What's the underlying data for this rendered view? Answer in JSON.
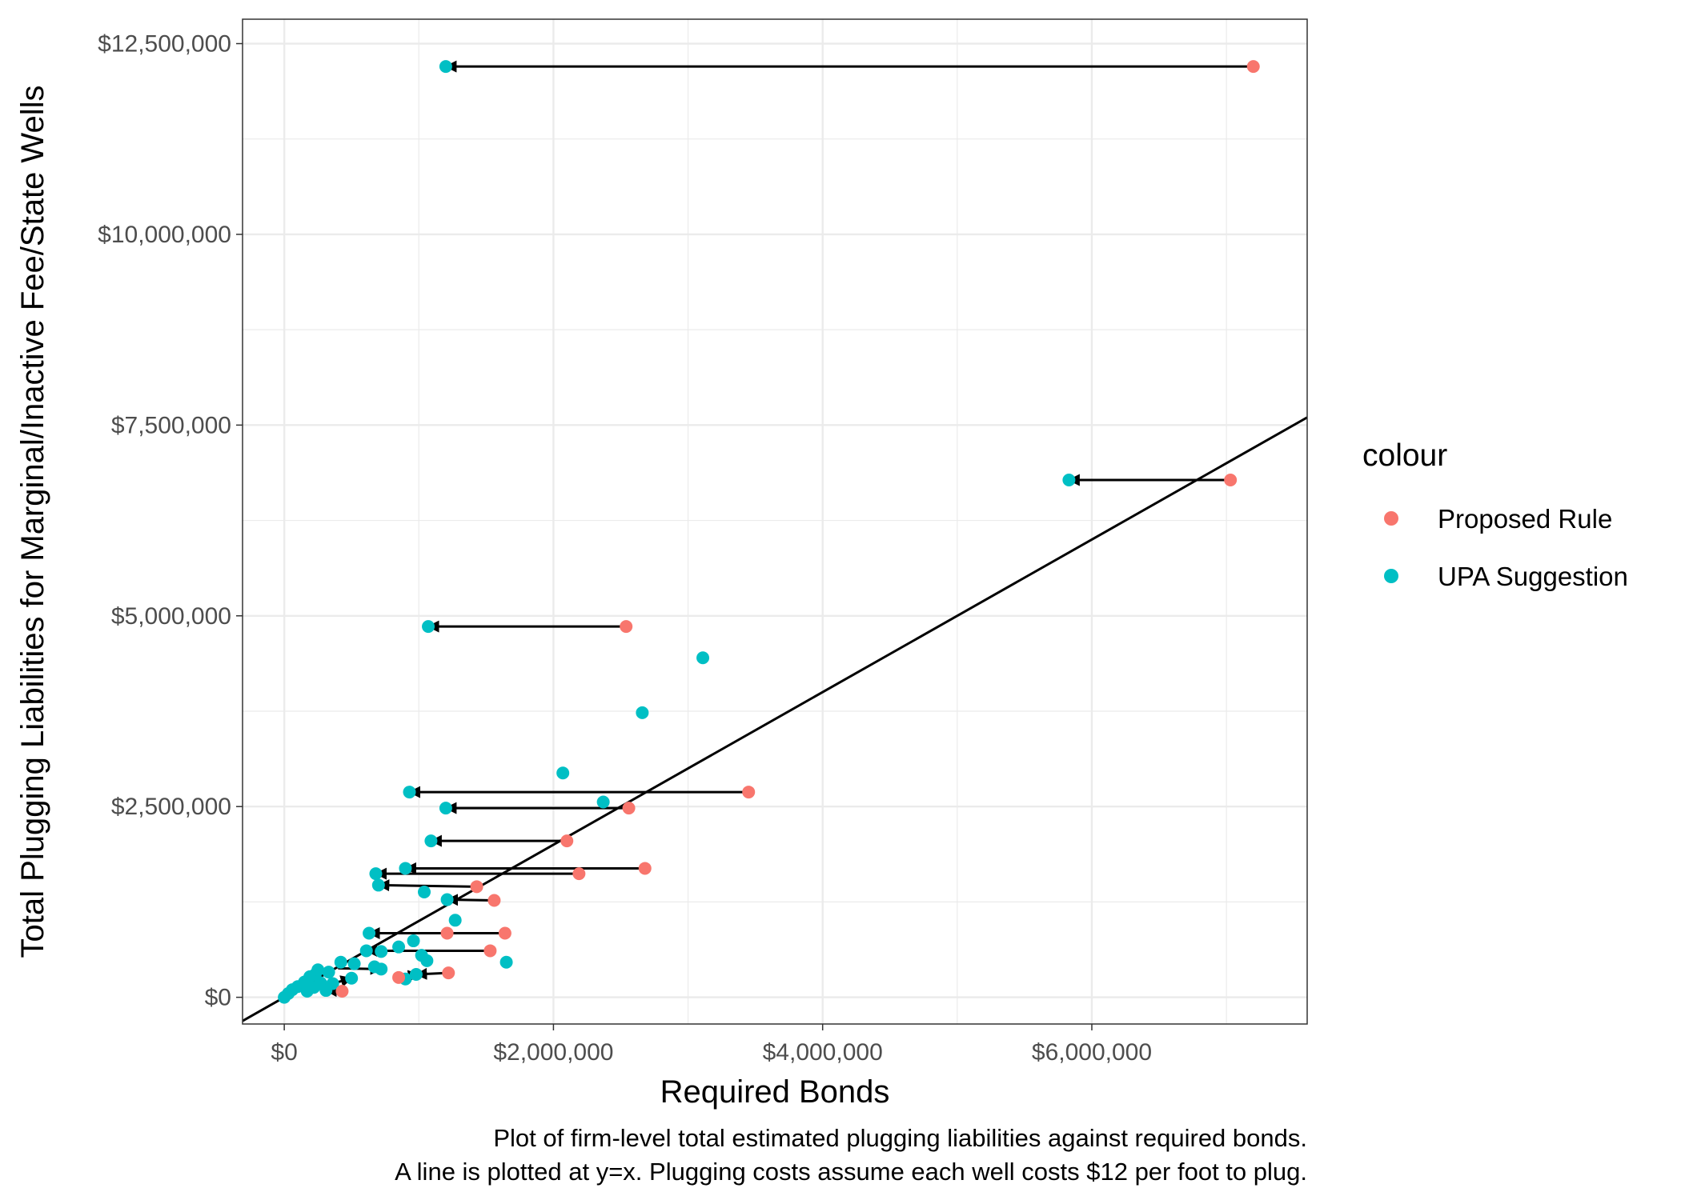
{
  "chart_data": {
    "type": "scatter",
    "xlabel": "Required Bonds",
    "ylabel": "Total Plugging Liabilities for Marginal/Inactive Fee/State Wells",
    "xlim": [
      -310000,
      7600000
    ],
    "ylim": [
      -350000,
      12820000
    ],
    "x_ticks": [
      {
        "value": 0,
        "label": "$0"
      },
      {
        "value": 2000000,
        "label": "$2,000,000"
      },
      {
        "value": 4000000,
        "label": "$4,000,000"
      },
      {
        "value": 6000000,
        "label": "$6,000,000"
      }
    ],
    "y_ticks": [
      {
        "value": 0,
        "label": "$0"
      },
      {
        "value": 2500000,
        "label": "$2,500,000"
      },
      {
        "value": 5000000,
        "label": "$5,000,000"
      },
      {
        "value": 7500000,
        "label": "$7,500,000"
      },
      {
        "value": 10000000,
        "label": "$10,000,000"
      },
      {
        "value": 12500000,
        "label": "$12,500,000"
      }
    ],
    "grid": true,
    "reference_line": "y=x",
    "legend": {
      "title": "colour",
      "placement": "right",
      "entries": [
        {
          "name": "Proposed Rule",
          "color": "#F8766D"
        },
        {
          "name": "UPA Suggestion",
          "color": "#00BFC4"
        }
      ]
    },
    "series": [
      {
        "name": "Proposed Rule",
        "color": "#F8766D",
        "points": [
          [
            7200000,
            12200000
          ],
          [
            7030000,
            6780000
          ],
          [
            2540000,
            4860000
          ],
          [
            3450000,
            2690000
          ],
          [
            2560000,
            2480000
          ],
          [
            2100000,
            2050000
          ],
          [
            2680000,
            1690000
          ],
          [
            2190000,
            1620000
          ],
          [
            1430000,
            1450000
          ],
          [
            1560000,
            1270000
          ],
          [
            1640000,
            840000
          ],
          [
            1210000,
            840000
          ],
          [
            1530000,
            610000
          ],
          [
            1220000,
            320000
          ],
          [
            850000,
            260000
          ],
          [
            430000,
            80000
          ]
        ]
      },
      {
        "name": "UPA Suggestion",
        "color": "#00BFC4",
        "points": [
          [
            1200000,
            12200000
          ],
          [
            5830000,
            6780000
          ],
          [
            1070000,
            4860000
          ],
          [
            3110000,
            4450000
          ],
          [
            2660000,
            3730000
          ],
          [
            2070000,
            2940000
          ],
          [
            930000,
            2690000
          ],
          [
            2370000,
            2560000
          ],
          [
            1200000,
            2480000
          ],
          [
            1090000,
            2050000
          ],
          [
            900000,
            1690000
          ],
          [
            680000,
            1620000
          ],
          [
            700000,
            1470000
          ],
          [
            1040000,
            1380000
          ],
          [
            1210000,
            1280000
          ],
          [
            1270000,
            1010000
          ],
          [
            630000,
            840000
          ],
          [
            960000,
            740000
          ],
          [
            850000,
            660000
          ],
          [
            610000,
            610000
          ],
          [
            720000,
            600000
          ],
          [
            1020000,
            550000
          ],
          [
            1060000,
            480000
          ],
          [
            1650000,
            460000
          ],
          [
            420000,
            460000
          ],
          [
            520000,
            440000
          ],
          [
            670000,
            400000
          ],
          [
            720000,
            370000
          ],
          [
            250000,
            360000
          ],
          [
            330000,
            330000
          ],
          [
            230000,
            300000
          ],
          [
            980000,
            300000
          ],
          [
            190000,
            270000
          ],
          [
            500000,
            250000
          ],
          [
            900000,
            240000
          ],
          [
            150000,
            200000
          ],
          [
            270000,
            190000
          ],
          [
            360000,
            180000
          ],
          [
            100000,
            140000
          ],
          [
            220000,
            130000
          ],
          [
            60000,
            100000
          ],
          [
            310000,
            90000
          ],
          [
            170000,
            80000
          ],
          [
            30000,
            50000
          ],
          [
            0,
            0
          ]
        ]
      }
    ],
    "arrows": [
      {
        "from": [
          7200000,
          12200000
        ],
        "to": [
          1200000,
          12200000
        ]
      },
      {
        "from": [
          7030000,
          6780000
        ],
        "to": [
          5830000,
          6780000
        ]
      },
      {
        "from": [
          2540000,
          4860000
        ],
        "to": [
          1070000,
          4860000
        ]
      },
      {
        "from": [
          3450000,
          2690000
        ],
        "to": [
          930000,
          2690000
        ]
      },
      {
        "from": [
          2560000,
          2480000
        ],
        "to": [
          1200000,
          2480000
        ]
      },
      {
        "from": [
          2100000,
          2050000
        ],
        "to": [
          1090000,
          2050000
        ]
      },
      {
        "from": [
          2680000,
          1690000
        ],
        "to": [
          900000,
          1690000
        ]
      },
      {
        "from": [
          2190000,
          1620000
        ],
        "to": [
          680000,
          1620000
        ]
      },
      {
        "from": [
          1430000,
          1450000
        ],
        "to": [
          700000,
          1470000
        ]
      },
      {
        "from": [
          1560000,
          1270000
        ],
        "to": [
          1210000,
          1280000
        ]
      },
      {
        "from": [
          1640000,
          840000
        ],
        "to": [
          630000,
          840000
        ]
      },
      {
        "from": [
          1530000,
          610000
        ],
        "to": [
          610000,
          610000
        ]
      },
      {
        "from": [
          1220000,
          320000
        ],
        "to": [
          980000,
          300000
        ]
      },
      {
        "from": [
          850000,
          260000
        ],
        "to": [
          1000000,
          300000
        ]
      },
      {
        "from": [
          400000,
          380000
        ],
        "to": [
          720000,
          370000
        ]
      },
      {
        "from": [
          400000,
          200000
        ],
        "to": [
          500000,
          250000
        ]
      },
      {
        "from": [
          430000,
          80000
        ],
        "to": [
          310000,
          90000
        ]
      }
    ],
    "caption": [
      "Plot of firm-level total estimated plugging liabilities against required bonds.",
      "A line is plotted at y=x. Plugging costs assume each well costs $12 per foot to plug."
    ]
  }
}
